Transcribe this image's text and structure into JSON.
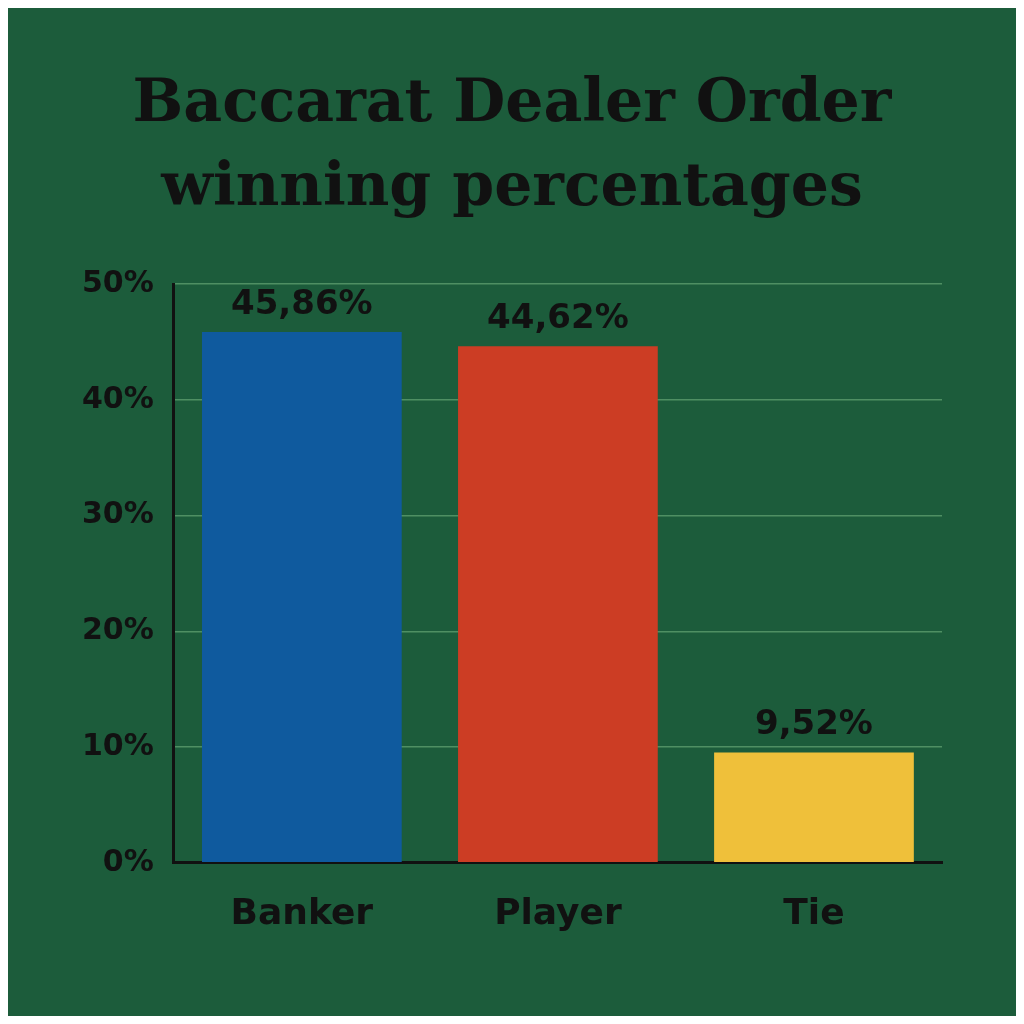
{
  "chart_data": {
    "type": "bar",
    "title": "Baccarat Dealer Order winning percentages",
    "categories": [
      "Banker",
      "Player",
      "Tie"
    ],
    "values": [
      45.86,
      44.62,
      9.52
    ],
    "colors": [
      "#0f5a9e",
      "#cc3d24",
      "#efc03a"
    ],
    "value_labels": [
      "45,86%",
      "44,62%",
      "9,52%"
    ],
    "ylim": [
      0,
      50
    ],
    "yticks": [
      {
        "value": 0,
        "label": "0%"
      },
      {
        "value": 10,
        "label": "10%"
      },
      {
        "value": 20,
        "label": "20%"
      },
      {
        "value": 30,
        "label": "30%"
      },
      {
        "value": 40,
        "label": "40%"
      },
      {
        "value": 50,
        "label": "50%"
      }
    ],
    "grid": "y"
  }
}
